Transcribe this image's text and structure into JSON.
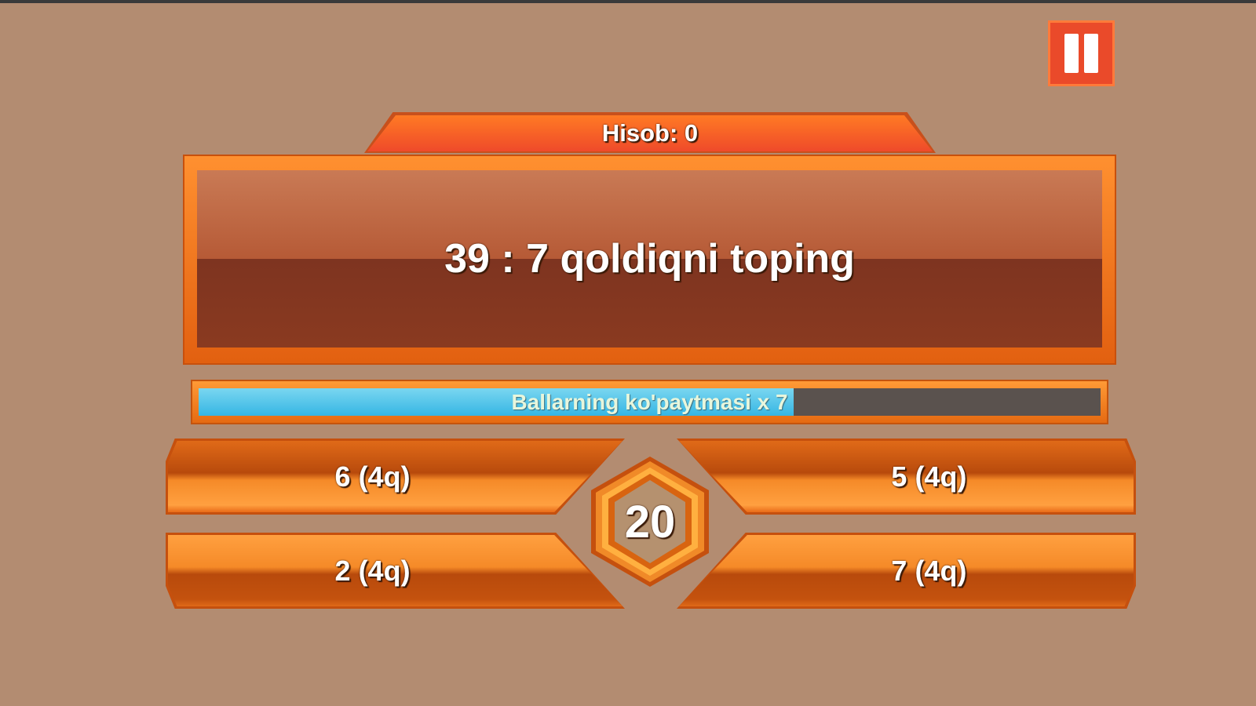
{
  "pause_button": {
    "icon": "pause-icon"
  },
  "score": {
    "label": "Hisob: 0"
  },
  "question": {
    "text": "39 : 7 qoldiqni toping"
  },
  "multiplier": {
    "label": "Ballarning ko'paytmasi x 7",
    "progress_percent": 66,
    "fill_color": "#35b6e4"
  },
  "answers": [
    {
      "label": "6 (4q)"
    },
    {
      "label": "5 (4q)"
    },
    {
      "label": "2 (4q)"
    },
    {
      "label": "7 (4q)"
    }
  ],
  "timer": {
    "value": "20"
  },
  "colors": {
    "background": "#b38c71",
    "accent": "#f07820",
    "pause": "#ea4a2a"
  }
}
